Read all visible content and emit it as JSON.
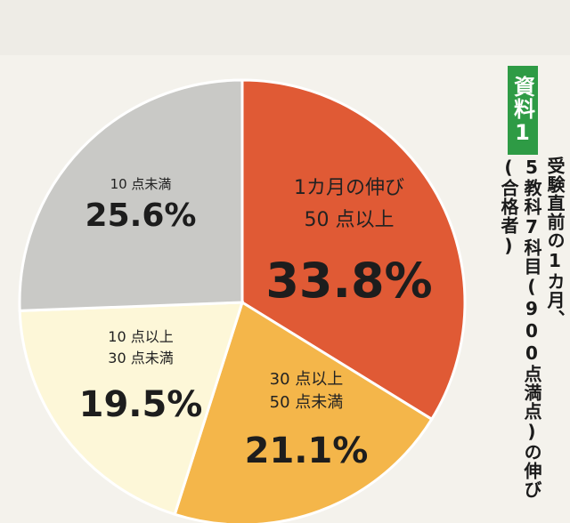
{
  "sidebar": {
    "badge": "資料1",
    "caption_line1": "受験直前の1カ月、",
    "caption_line2": "5教科7科目(900点満点)の伸び(合格者)"
  },
  "chart_data": {
    "type": "pie",
    "title": "",
    "slices": [
      {
        "label_lines": [
          "1カ月の伸び",
          "50 点以上"
        ],
        "value": 33.8,
        "pct_text": "33.8%",
        "color": "#e05a35"
      },
      {
        "label_lines": [
          "30 点以上",
          "50 点未満"
        ],
        "value": 21.1,
        "pct_text": "21.1%",
        "color": "#f4b64a"
      },
      {
        "label_lines": [
          "10 点以上",
          "30 点未満"
        ],
        "value": 19.5,
        "pct_text": "19.5%",
        "color": "#fdf7d8"
      },
      {
        "label_lines": [
          "10 点未満"
        ],
        "value": 25.6,
        "pct_text": "25.6%",
        "color": "#c9c9c6"
      }
    ]
  }
}
